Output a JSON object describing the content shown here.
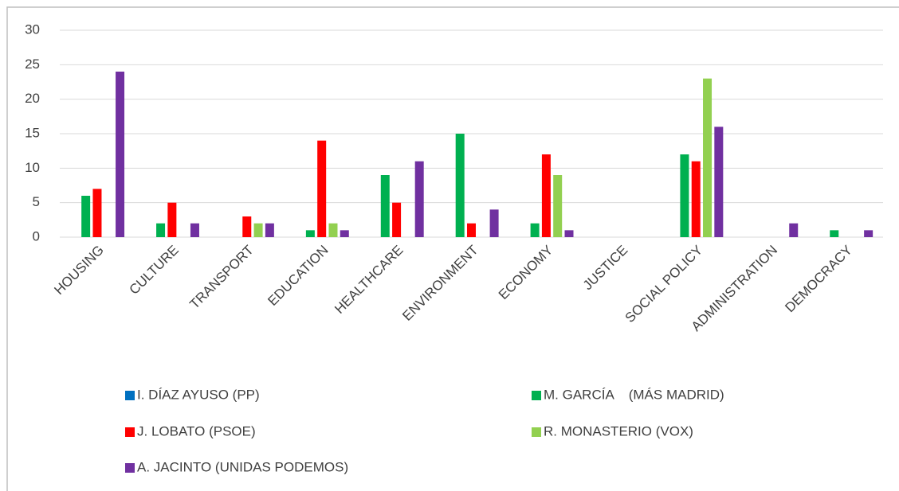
{
  "chart_data": {
    "type": "bar",
    "categories": [
      "HOUSING",
      "CULTURE",
      "TRANSPORT",
      "EDUCATION",
      "HEALTHCARE",
      "ENVIRONMENT",
      "ECONOMY",
      "JUSTICE",
      "SOCIAL POLICY",
      "ADMINISTRATION",
      "DEMOCRACY"
    ],
    "series": [
      {
        "name": "I. DÍAZ AYUSO (PP)",
        "color": "#0070c0",
        "values": [
          0,
          0,
          0,
          0,
          0,
          0,
          0,
          0,
          0,
          0,
          0
        ]
      },
      {
        "name": "M. GARCÍA    (MÁS MADRID)",
        "color": "#00b050",
        "values": [
          6,
          2,
          0,
          1,
          9,
          15,
          2,
          0,
          12,
          0,
          1
        ]
      },
      {
        "name": "J. LOBATO (PSOE)",
        "color": "#ff0000",
        "values": [
          7,
          5,
          3,
          14,
          5,
          2,
          12,
          0,
          11,
          0,
          0
        ]
      },
      {
        "name": "R. MONASTERIO (VOX)",
        "color": "#92d050",
        "values": [
          0,
          0,
          2,
          2,
          0,
          0,
          9,
          0,
          23,
          0,
          0
        ]
      },
      {
        "name": "A. JACINTO (UNIDAS PODEMOS)",
        "color": "#7030a0",
        "values": [
          24,
          2,
          2,
          1,
          11,
          4,
          1,
          0,
          16,
          2,
          1
        ]
      }
    ],
    "ylim": [
      0,
      30
    ],
    "yticks": [
      0,
      5,
      10,
      15,
      20,
      25,
      30
    ],
    "grid": true,
    "legend": "bottom"
  }
}
